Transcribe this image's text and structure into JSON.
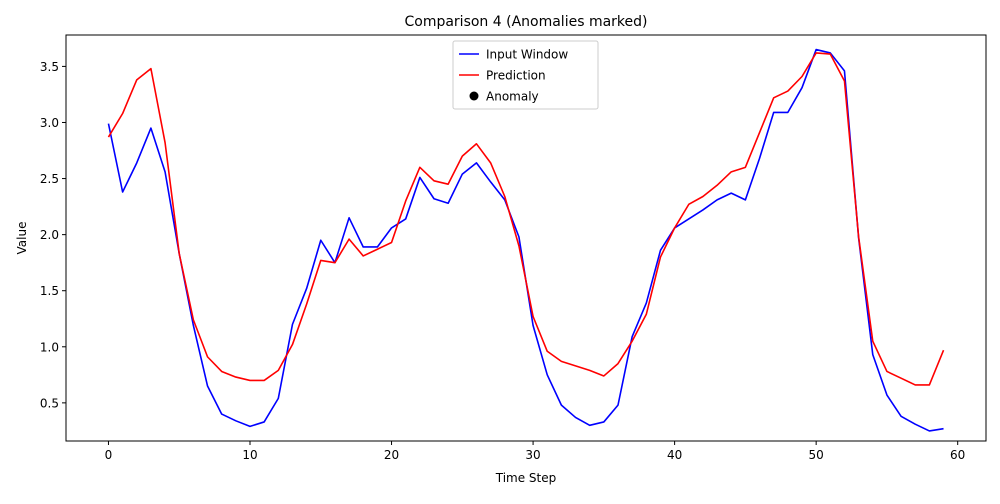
{
  "chart_data": {
    "type": "line",
    "title": "Comparison 4 (Anomalies marked)",
    "xlabel": "Time Step",
    "ylabel": "Value",
    "xlim": [
      -3,
      62
    ],
    "ylim": [
      0.16,
      3.78
    ],
    "xticks": [
      0,
      10,
      20,
      30,
      40,
      50,
      60
    ],
    "yticks": [
      0.5,
      1.0,
      1.5,
      2.0,
      2.5,
      3.0,
      3.5
    ],
    "xtick_labels": [
      "0",
      "10",
      "20",
      "30",
      "40",
      "50",
      "60"
    ],
    "ytick_labels": [
      "0.5",
      "1.0",
      "1.5",
      "2.0",
      "2.5",
      "3.0",
      "3.5"
    ],
    "legend_position": "top-center",
    "legend": [
      "Input Window",
      "Prediction",
      "Anomaly"
    ],
    "series": [
      {
        "name": "Input Window",
        "color": "#0000ff",
        "x": [
          0,
          1,
          2,
          3,
          4,
          5,
          6,
          7,
          8,
          9,
          10,
          11,
          12,
          13,
          14,
          15,
          16,
          17,
          18,
          19,
          20,
          21,
          22,
          23,
          24,
          25,
          26,
          27,
          28,
          29,
          30,
          31,
          32,
          33,
          34,
          35,
          36,
          37,
          38,
          39,
          40,
          41,
          42,
          43,
          44,
          45,
          46,
          47,
          48,
          49,
          50,
          51,
          52,
          53,
          54,
          55,
          56,
          57,
          58,
          59
        ],
        "values": [
          2.99,
          2.38,
          2.64,
          2.95,
          2.56,
          1.83,
          1.19,
          0.65,
          0.4,
          0.34,
          0.29,
          0.33,
          0.54,
          1.2,
          1.52,
          1.95,
          1.75,
          2.15,
          1.89,
          1.89,
          2.06,
          2.14,
          2.51,
          2.32,
          2.28,
          2.54,
          2.64,
          2.47,
          2.31,
          1.98,
          1.19,
          0.75,
          0.48,
          0.37,
          0.3,
          0.33,
          0.48,
          1.09,
          1.39,
          1.86,
          2.06,
          2.14,
          2.22,
          2.31,
          2.37,
          2.31,
          2.68,
          3.09,
          3.09,
          3.31,
          3.65,
          3.62,
          3.46,
          1.97,
          0.93,
          0.57,
          0.38,
          0.31,
          0.25,
          0.27
        ]
      },
      {
        "name": "Prediction",
        "color": "#ff0000",
        "x": [
          0,
          1,
          2,
          3,
          4,
          5,
          6,
          7,
          8,
          9,
          10,
          11,
          12,
          13,
          14,
          15,
          16,
          17,
          18,
          19,
          20,
          21,
          22,
          23,
          24,
          25,
          26,
          27,
          28,
          29,
          30,
          31,
          32,
          33,
          34,
          35,
          36,
          37,
          38,
          39,
          40,
          41,
          42,
          43,
          44,
          45,
          46,
          47,
          48,
          49,
          50,
          51,
          52,
          53,
          54,
          55,
          56,
          57,
          58,
          59
        ],
        "values": [
          2.87,
          3.08,
          3.38,
          3.48,
          2.82,
          1.83,
          1.24,
          0.91,
          0.78,
          0.73,
          0.7,
          0.7,
          0.79,
          1.02,
          1.38,
          1.77,
          1.75,
          1.96,
          1.81,
          1.87,
          1.93,
          2.3,
          2.6,
          2.48,
          2.45,
          2.7,
          2.81,
          2.64,
          2.34,
          1.9,
          1.27,
          0.96,
          0.87,
          0.83,
          0.79,
          0.74,
          0.85,
          1.05,
          1.29,
          1.8,
          2.06,
          2.27,
          2.34,
          2.44,
          2.56,
          2.6,
          2.91,
          3.22,
          3.28,
          3.41,
          3.62,
          3.61,
          3.37,
          1.98,
          1.05,
          0.78,
          0.72,
          0.66,
          0.66,
          0.97
        ]
      }
    ],
    "anomalies": []
  }
}
